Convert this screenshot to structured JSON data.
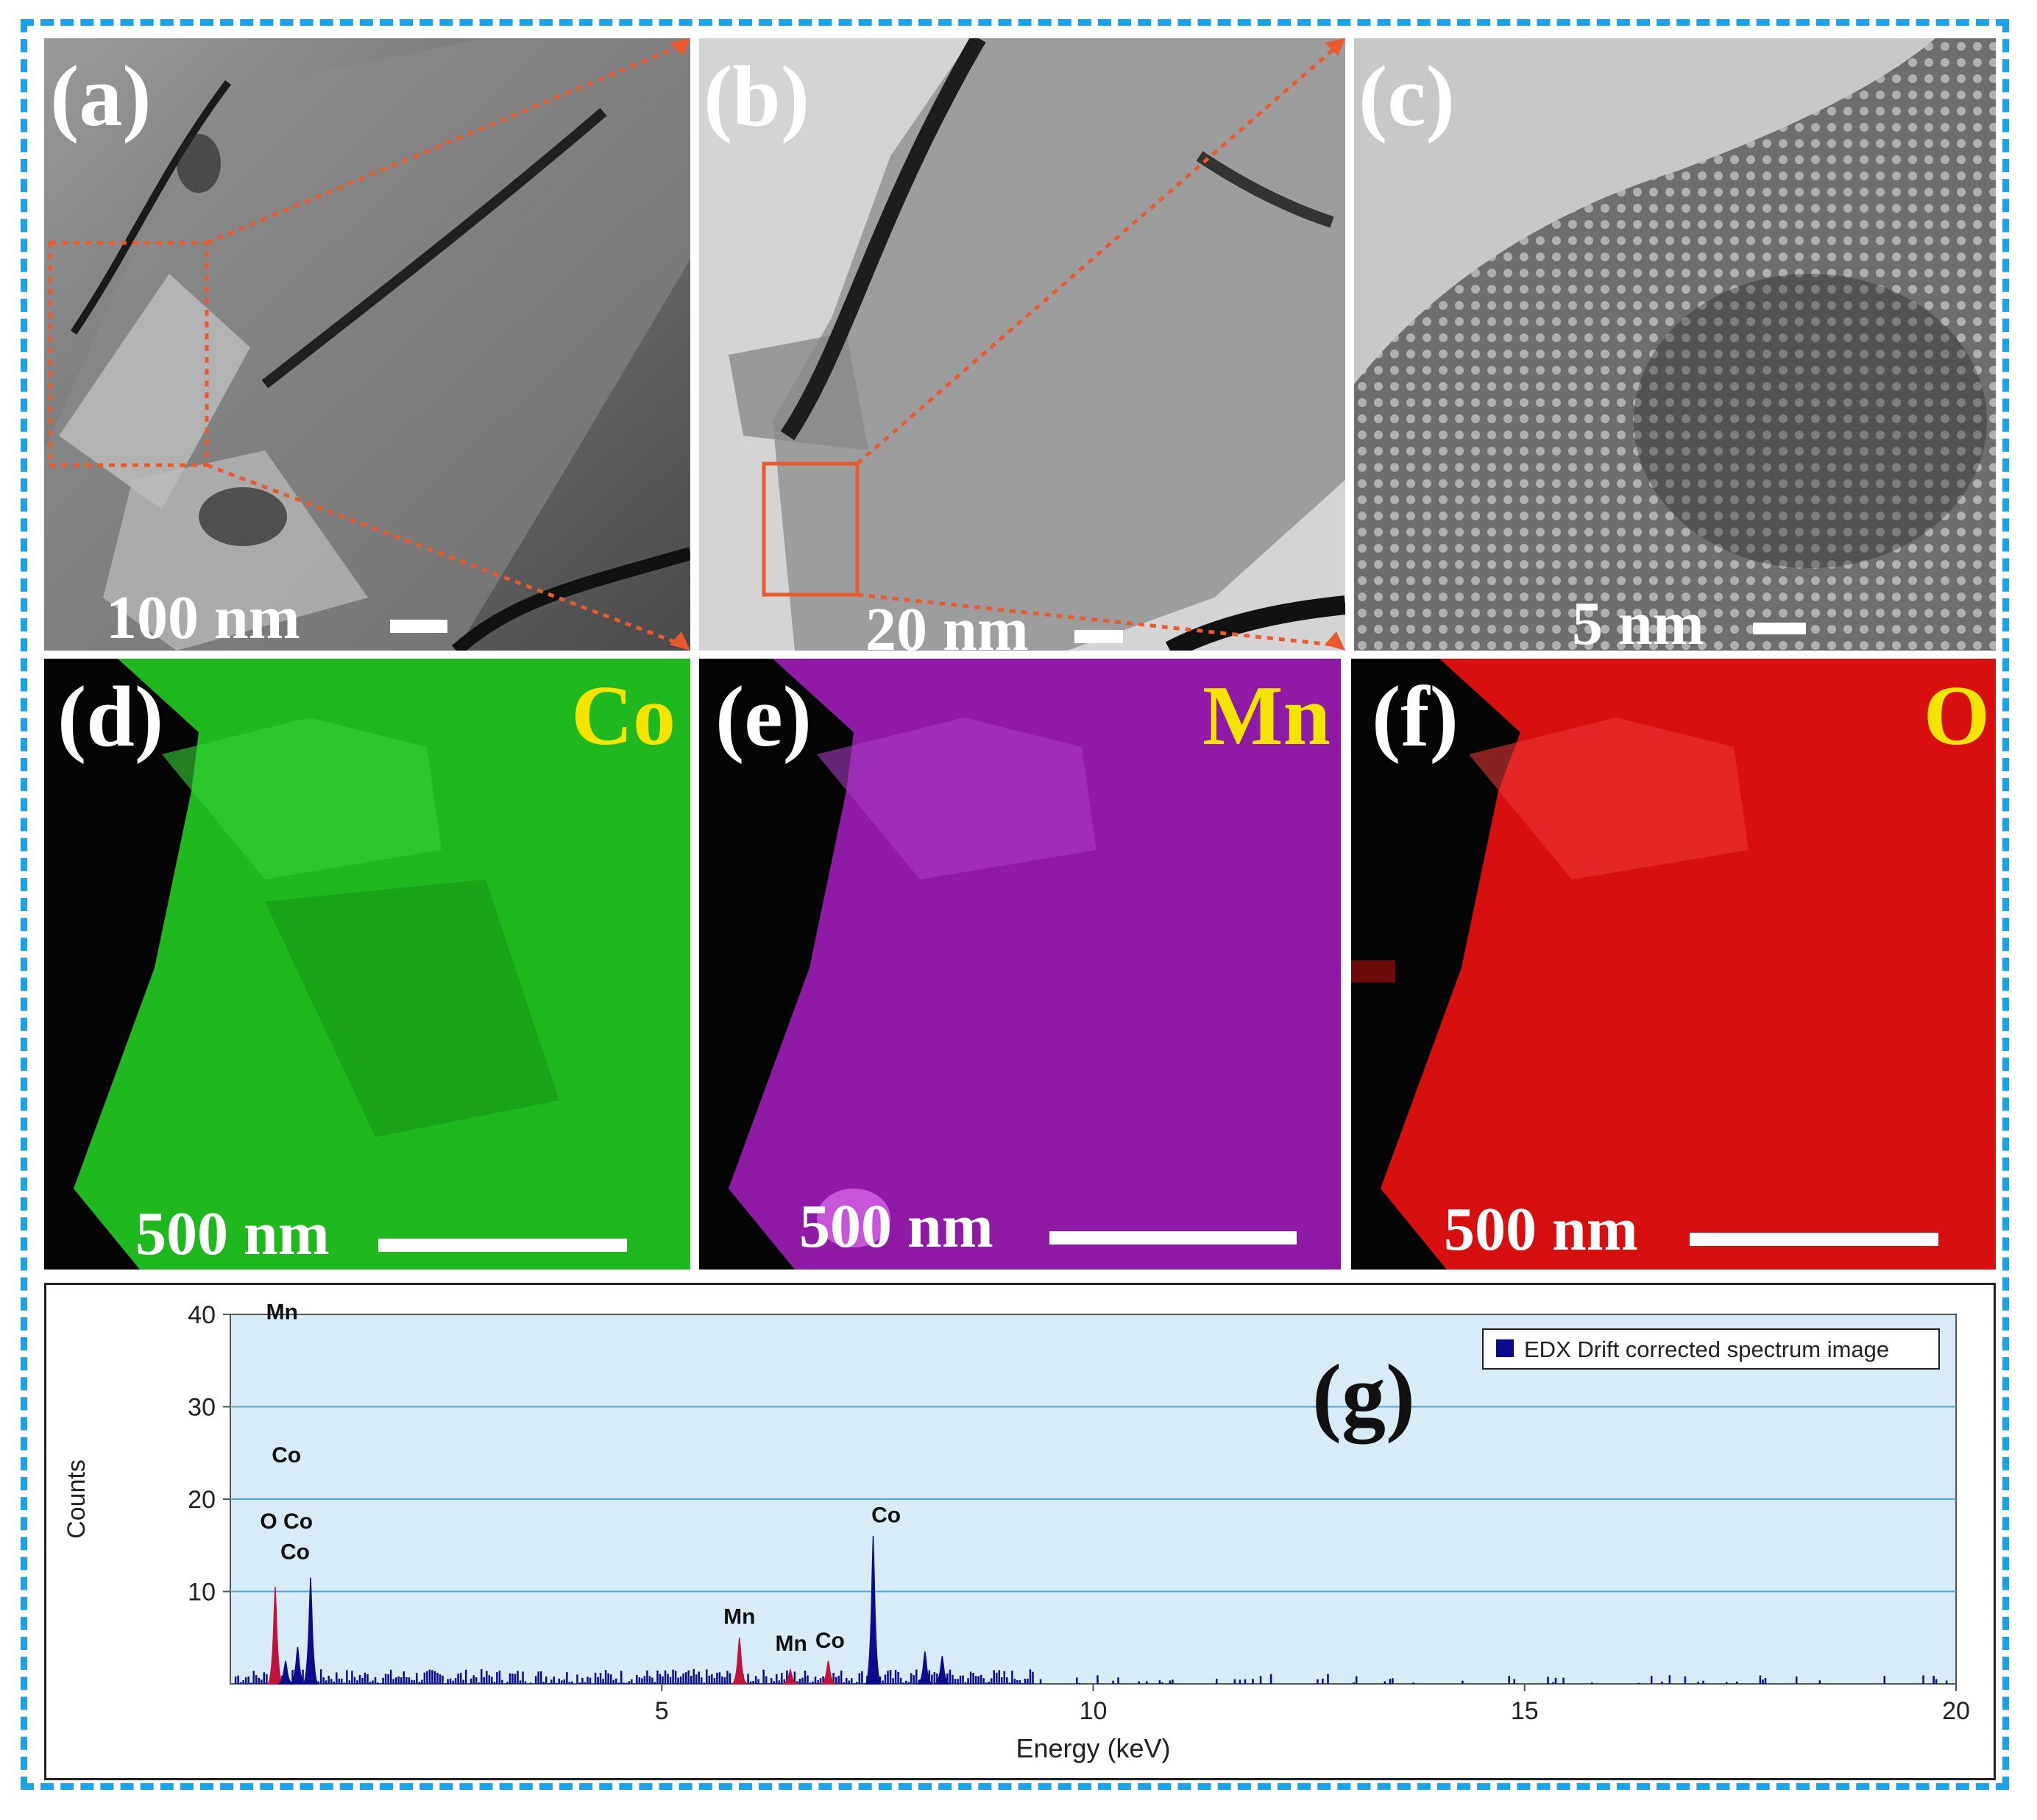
{
  "panels": [
    {
      "label": "(a)",
      "scale": "100 nm"
    },
    {
      "label": "(b)",
      "scale": "20 nm"
    },
    {
      "label": "(c)",
      "scale": "5 nm"
    },
    {
      "label": "(d)",
      "element": "Co",
      "scale": "500 nm",
      "color": "#1fb81f"
    },
    {
      "label": "(e)",
      "element": "Mn",
      "scale": "500 nm",
      "color": "#9a1fb0"
    },
    {
      "label": "(f)",
      "element": "O",
      "scale": "500 nm",
      "color": "#e01010"
    }
  ],
  "colors": {
    "frame": "#1aa3e8",
    "zoom_box": "#ea5a2c",
    "element_label": "#f4e400",
    "series": "#0b0b8c",
    "overlay": "#c0143c"
  },
  "chart_data": {
    "type": "area",
    "panel_label": "(g)",
    "xlabel": "Energy (keV)",
    "ylabel": "Counts",
    "xlim": [
      0,
      20
    ],
    "ylim": [
      0,
      40
    ],
    "xticks": [
      5,
      10,
      15,
      20
    ],
    "yticks": [
      10,
      20,
      30,
      40
    ],
    "legend": "EDX Drift corrected spectrum image",
    "legend_position": "top-right",
    "series": [
      {
        "name": "EDX Drift corrected spectrum image",
        "peaks": [
          {
            "x": 0.52,
            "y": 10.5,
            "color": "#c0143c"
          },
          {
            "x": 0.64,
            "y": 2.5
          },
          {
            "x": 0.78,
            "y": 4.0
          },
          {
            "x": 0.93,
            "y": 11.5
          },
          {
            "x": 5.9,
            "y": 5.0,
            "color": "#c0143c"
          },
          {
            "x": 6.49,
            "y": 1.5,
            "color": "#c0143c"
          },
          {
            "x": 6.93,
            "y": 2.5,
            "color": "#c0143c"
          },
          {
            "x": 7.45,
            "y": 16.0
          },
          {
            "x": 8.05,
            "y": 3.5
          },
          {
            "x": 8.25,
            "y": 3.0
          }
        ]
      }
    ],
    "annotations": [
      {
        "text": "Mn",
        "x": 0.6,
        "y": 39.5
      },
      {
        "text": "Co",
        "x": 0.65,
        "y": 24.0
      },
      {
        "text": "O Co",
        "x": 0.65,
        "y": 16.8
      },
      {
        "text": "Co",
        "x": 0.75,
        "y": 13.5
      },
      {
        "text": "Mn",
        "x": 5.9,
        "y": 6.5
      },
      {
        "text": "Mn",
        "x": 6.5,
        "y": 3.6
      },
      {
        "text": "Co",
        "x": 6.95,
        "y": 3.9
      },
      {
        "text": "Co",
        "x": 7.6,
        "y": 17.5
      }
    ]
  }
}
